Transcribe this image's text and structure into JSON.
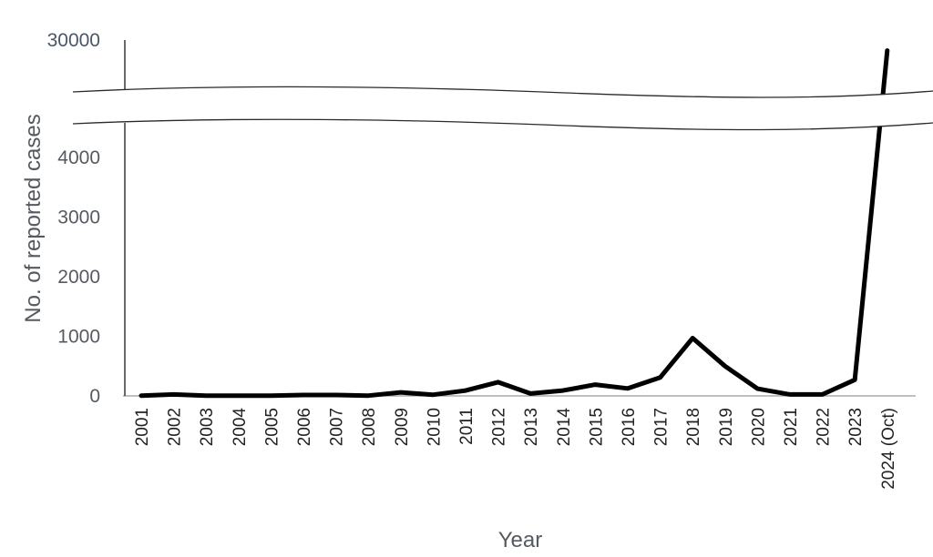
{
  "chart_data": {
    "type": "line",
    "title": "",
    "xlabel": "Year",
    "ylabel": "No. of reported cases",
    "categories": [
      "2001",
      "2002",
      "2003",
      "2004",
      "2005",
      "2006",
      "2007",
      "2008",
      "2009",
      "2010",
      "2011",
      "2012",
      "2013",
      "2014",
      "2015",
      "2016",
      "2017",
      "2018",
      "2019",
      "2020",
      "2021",
      "2022",
      "2023",
      "2024 (Oct)"
    ],
    "series": [
      {
        "values": [
          5,
          25,
          5,
          5,
          5,
          15,
          15,
          5,
          60,
          20,
          90,
          230,
          40,
          90,
          190,
          125,
          310,
          970,
          500,
          120,
          25,
          25,
          270,
          26000
        ]
      }
    ],
    "y_ticks_lower": [
      0,
      1000,
      2000,
      3000,
      4000
    ],
    "y_ticks_upper": [
      30000
    ],
    "ylim_lower": [
      0,
      4500
    ],
    "ylim_upper": [
      4500,
      30000
    ],
    "axis_break": true,
    "grid": false,
    "legend": "none",
    "colors": {
      "line": "#000000",
      "axis": "#9a9a9a",
      "tick_text": "#555a60"
    }
  }
}
